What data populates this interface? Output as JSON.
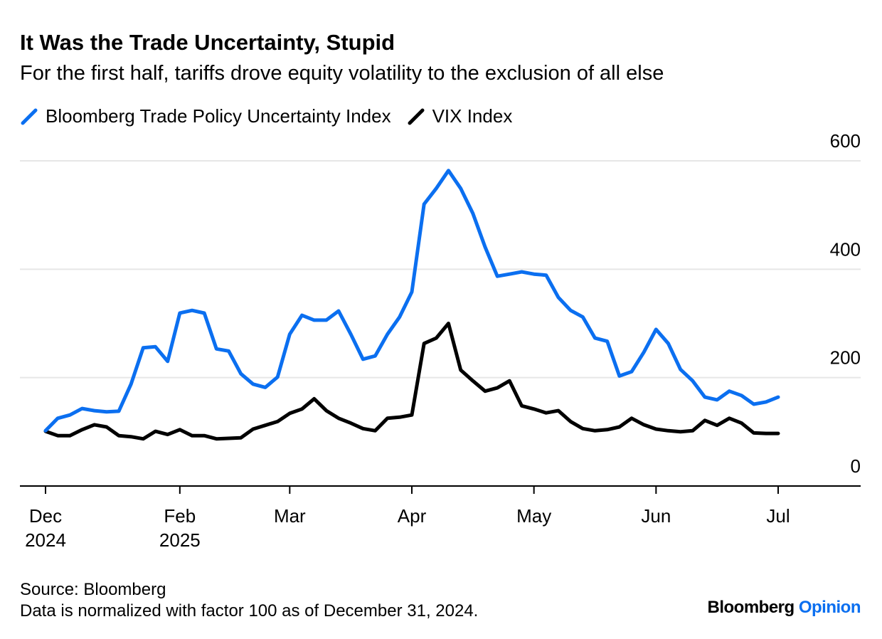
{
  "chart_data": {
    "type": "line",
    "title": "It Was the Trade Uncertainty, Stupid",
    "subtitle": "For the first half, tariffs drove equity volatility to the exclusion of all else",
    "categories": [
      "Dec 2024",
      null,
      null,
      null,
      null,
      null,
      null,
      null,
      null,
      null,
      null,
      "Feb 2025",
      null,
      null,
      null,
      null,
      null,
      null,
      null,
      null,
      "Mar",
      null,
      null,
      null,
      null,
      null,
      null,
      null,
      null,
      null,
      "Apr",
      null,
      null,
      null,
      null,
      null,
      null,
      null,
      null,
      null,
      "May",
      null,
      null,
      null,
      null,
      null,
      null,
      null,
      null,
      null,
      "Jun",
      null,
      null,
      null,
      null,
      null,
      null,
      null,
      null,
      null,
      "Jul"
    ],
    "series": [
      {
        "name": "Bloomberg Trade Policy Uncertainty Index",
        "color": "#0b6ff0",
        "values": [
          102,
          125,
          131,
          143,
          139,
          137,
          138,
          188,
          255,
          257,
          230,
          319,
          324,
          319,
          253,
          249,
          207,
          188,
          182,
          201,
          280,
          315,
          306,
          306,
          323,
          280,
          234,
          240,
          280,
          312,
          358,
          520,
          549,
          582,
          549,
          503,
          441,
          387,
          391,
          395,
          391,
          389,
          348,
          324,
          312,
          273,
          267,
          203,
          211,
          247,
          289,
          263,
          215,
          194,
          164,
          159,
          175,
          167,
          151,
          155,
          164
        ]
      },
      {
        "name": "VIX Index",
        "color": "#000000",
        "values": [
          101,
          93,
          93,
          104,
          113,
          109,
          93,
          91,
          87,
          101,
          95,
          104,
          93,
          93,
          87,
          88,
          89,
          105,
          112,
          119,
          134,
          142,
          161,
          139,
          125,
          116,
          106,
          102,
          125,
          127,
          131,
          263,
          273,
          300,
          214,
          194,
          175,
          181,
          194,
          148,
          142,
          135,
          139,
          119,
          106,
          102,
          104,
          109,
          125,
          113,
          105,
          102,
          100,
          102,
          121,
          112,
          125,
          116,
          98,
          97,
          97
        ]
      }
    ],
    "ylim": [
      0,
      600
    ],
    "yticks": [
      0,
      200,
      400,
      600
    ],
    "grid": true,
    "source": "Source: Bloomberg",
    "note": "Data is normalized with factor 100 as of December 31, 2024.",
    "brand": [
      "Bloomberg",
      "Opinion"
    ]
  }
}
